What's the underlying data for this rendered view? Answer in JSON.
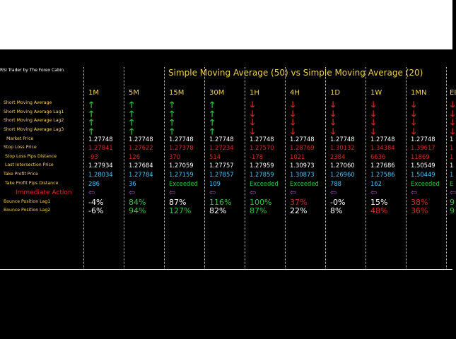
{
  "app_title": "RSI Trader by The Forex Cabin",
  "main_title": "Simple Moving Average (50) vs Simple Moving Average (20)",
  "timeframes": [
    "1M",
    "5M",
    "15M",
    "30M",
    "1H",
    "4H",
    "1D",
    "1W",
    "1MN",
    "EI"
  ],
  "row_labels": {
    "sma": "Short Moving Average",
    "sma_lag1": "Short Moving Average Lag1",
    "sma_lag2": "Short Moving Average Lag2",
    "sma_lag3": "Short Moving Average Lag3",
    "market_price": "Market Price",
    "stop_loss_price": "Stop Loss Price",
    "stop_loss_pips": "Stop Loss Pips Distance",
    "last_intersection": "Last Intersection Price",
    "take_profit_price": "Take Profit Price",
    "take_profit_pips": "Take Profit Pips Distance",
    "immediate_action": "Immediate Action",
    "bounce_lag1": "Bounce Position Lag1",
    "bounce_lag2": "Bounce Position Lag2"
  },
  "arrow_glyphs": {
    "up": "🡑",
    "down": "🡓",
    "left": "⇦"
  },
  "directions": [
    [
      "up",
      "up",
      "up",
      "up"
    ],
    [
      "up",
      "up",
      "up",
      "up"
    ],
    [
      "up",
      "up",
      "up",
      "up"
    ],
    [
      "up",
      "up",
      "up",
      "up"
    ],
    [
      "down",
      "down",
      "down",
      "down"
    ],
    [
      "down",
      "down",
      "down",
      "down"
    ],
    [
      "down",
      "down",
      "down",
      "down"
    ],
    [
      "down",
      "down",
      "down",
      "down"
    ],
    [
      "down",
      "down",
      "down",
      "down"
    ],
    [
      "down",
      "down",
      "down",
      "down"
    ]
  ],
  "market_price": [
    "1.27748",
    "1.27748",
    "1.27748",
    "1.27748",
    "1.27748",
    "1.27748",
    "1.27748",
    "1.27748",
    "1.27748",
    "1"
  ],
  "stop_loss_price": [
    "1.27841",
    "1.27622",
    "1.27378",
    "1.27234",
    "1.27570",
    "1.28769",
    "1.30132",
    "1.34384",
    "1.39617",
    "1"
  ],
  "stop_loss_pips": [
    "-93",
    "126",
    "370",
    "514",
    "-178",
    "1021",
    "2384",
    "6636",
    "11869",
    "1"
  ],
  "last_intersection": [
    "1.27934",
    "1.27684",
    "1.27059",
    "1.27757",
    "1.27959",
    "1.30973",
    "1.27060",
    "1.27686",
    "1.50549",
    "1"
  ],
  "take_profit_price": [
    "1.28034",
    "1.27784",
    "1.27159",
    "1.27857",
    "1.27859",
    "1.30873",
    "1.26960",
    "1.27586",
    "1.50449",
    "1"
  ],
  "take_profit_pips": [
    "286",
    "36",
    "Exceeded",
    "109",
    "Exceeded",
    "Exceeded",
    "788",
    "162",
    "Exceeded",
    "E"
  ],
  "bounce_lag1": [
    "-4%",
    "84%",
    "87%",
    "116%",
    "100%",
    "37%",
    "-0%",
    "15%",
    "38%",
    "9"
  ],
  "bounce_lag2": [
    "-6%",
    "94%",
    "127%",
    "82%",
    "87%",
    "22%",
    "8%",
    "48%",
    "36%",
    "9"
  ],
  "colors": {
    "label": "#ffd24a",
    "title": "#f2d24a",
    "up": "#27c93f",
    "down": "#e0281c",
    "cyan": "#3fc6ff",
    "purple": "#b64ad8",
    "white": "#ffffff"
  },
  "cell_colors": {
    "take_profit_pips": [
      "cyan",
      "cyan",
      "green",
      "cyan",
      "green",
      "green",
      "cyan",
      "cyan",
      "green",
      "green"
    ],
    "bounce_lag1": [
      "white",
      "green",
      "white",
      "green",
      "green",
      "red",
      "white",
      "white",
      "red",
      "green"
    ],
    "bounce_lag2": [
      "white",
      "green",
      "green",
      "white",
      "green",
      "white",
      "white",
      "red",
      "red",
      "green"
    ]
  }
}
